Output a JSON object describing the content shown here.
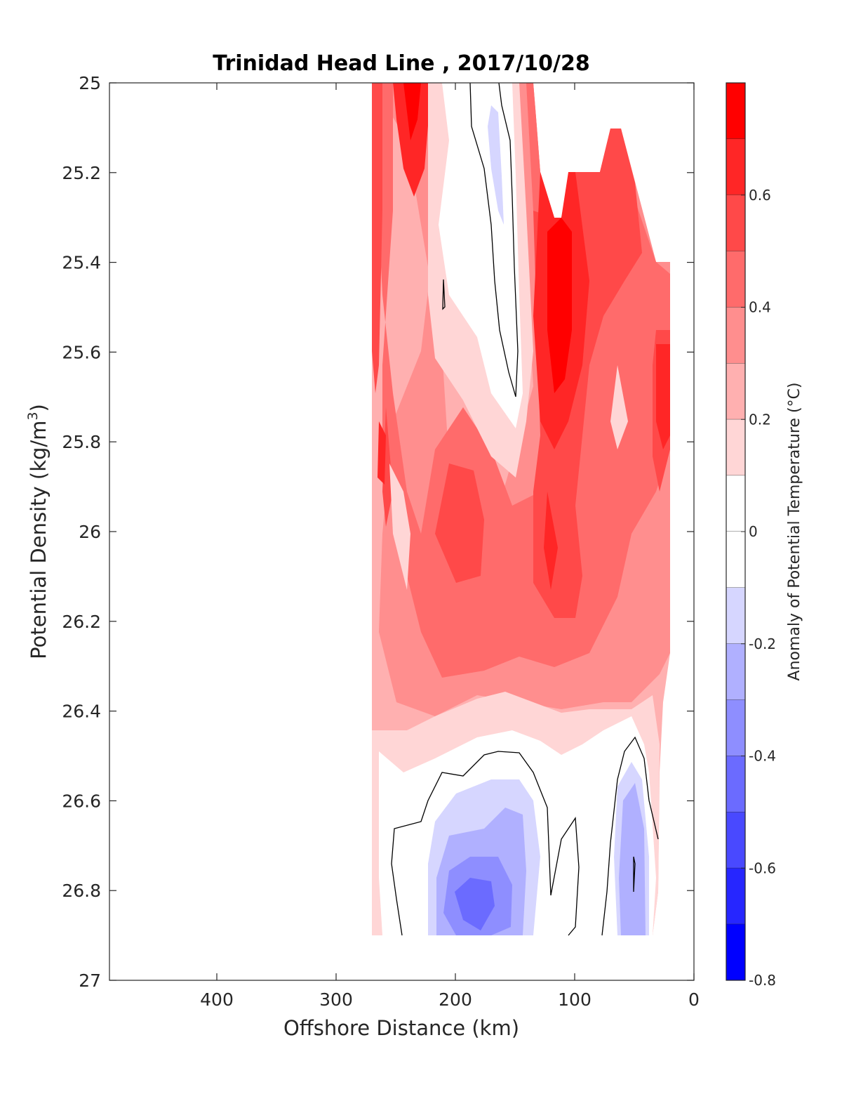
{
  "chart_data": {
    "type": "heatmap",
    "title": "Trinidad Head Line , 2017/10/28",
    "xlabel": "Offshore Distance (km)",
    "ylabel": "Potential Density (kg/m^3)",
    "xlim": [
      490,
      0
    ],
    "x_reversed": true,
    "ylim": [
      25,
      27
    ],
    "y_reversed": true,
    "x_ticks": [
      "400",
      "300",
      "200",
      "100",
      "0"
    ],
    "y_ticks": [
      "25",
      "25.2",
      "25.4",
      "25.6",
      "25.8",
      "26",
      "26.2",
      "26.4",
      "26.6",
      "26.8",
      "27"
    ],
    "colorbar": {
      "label": "Anomaly of Potential Temperature (°C)",
      "range": [
        -0.8,
        0.8
      ],
      "ticks": [
        "0.6",
        "0.4",
        "0.2",
        "0",
        "-0.2",
        "-0.4",
        "-0.6",
        "-0.8"
      ],
      "levels": [
        {
          "min": 0.7,
          "max": 0.8,
          "color": "#ff0000"
        },
        {
          "min": 0.6,
          "max": 0.7,
          "color": "#ff2626"
        },
        {
          "min": 0.5,
          "max": 0.6,
          "color": "#ff4949"
        },
        {
          "min": 0.4,
          "max": 0.5,
          "color": "#ff6b6b"
        },
        {
          "min": 0.3,
          "max": 0.4,
          "color": "#ff8e8e"
        },
        {
          "min": 0.2,
          "max": 0.3,
          "color": "#ffb0b0"
        },
        {
          "min": 0.1,
          "max": 0.2,
          "color": "#ffd6d6"
        },
        {
          "min": 0.0,
          "max": 0.1,
          "color": "#ffffff"
        },
        {
          "min": -0.1,
          "max": 0.0,
          "color": "#ffffff"
        },
        {
          "min": -0.2,
          "max": -0.1,
          "color": "#d6d6ff"
        },
        {
          "min": -0.3,
          "max": -0.2,
          "color": "#b0b0ff"
        },
        {
          "min": -0.4,
          "max": -0.3,
          "color": "#8e8eff"
        },
        {
          "min": -0.5,
          "max": -0.4,
          "color": "#6b6bff"
        },
        {
          "min": -0.6,
          "max": -0.5,
          "color": "#4949ff"
        },
        {
          "min": -0.7,
          "max": -0.6,
          "color": "#2626ff"
        },
        {
          "min": -0.8,
          "max": -0.7,
          "color": "#0000ff"
        }
      ]
    },
    "zero_contour_color": "#000000",
    "features": [
      {
        "name": "warm-surface-band-offshore",
        "x": [
          270,
          215
        ],
        "y": [
          25.0,
          26.3
        ],
        "anomaly": 0.5
      },
      {
        "name": "warm-core-upper",
        "x": [
          130,
          100
        ],
        "y": [
          25.3,
          25.8
        ],
        "anomaly": 0.75
      },
      {
        "name": "warm-core-mid",
        "x": [
          215,
          170
        ],
        "y": [
          25.9,
          26.15
        ],
        "anomaly": 0.55
      },
      {
        "name": "cool-lens-upper",
        "x": [
          175,
          140
        ],
        "y": [
          25.05,
          25.7
        ],
        "anomaly": -0.05
      },
      {
        "name": "cool-pool-deep-offshore",
        "x": [
          225,
          140
        ],
        "y": [
          26.6,
          26.9
        ],
        "anomaly": -0.45
      },
      {
        "name": "cool-pool-deep-nearshore",
        "x": [
          70,
          35
        ],
        "y": [
          26.55,
          26.9
        ],
        "anomaly": -0.25
      }
    ]
  }
}
